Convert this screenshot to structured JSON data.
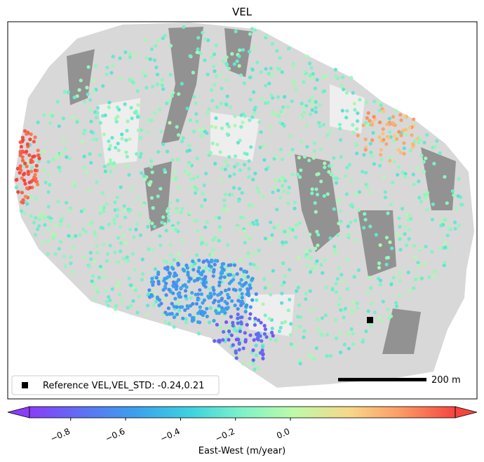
{
  "chart_data": {
    "type": "scatter",
    "title": "VEL",
    "colorbar": {
      "label": "East-West (m/year)",
      "ticks": [
        -0.8,
        -0.6,
        -0.4,
        -0.2,
        0.0
      ],
      "tick_labels": [
        "−0.8",
        "−0.6",
        "−0.4",
        "−0.2",
        "0.0"
      ],
      "range": [
        -0.95,
        0.6
      ],
      "colormap": "rainbow",
      "extend": "both"
    },
    "legend": {
      "placement": "lower-left",
      "marker": "black-square",
      "label": "Reference VEL,VEL_STD: -0.24,0.21"
    },
    "scalebar": {
      "label": "200 m",
      "placement": "lower-right"
    },
    "reference_point": {
      "marker": "black-square"
    },
    "background": "grayscale hillshade",
    "value_clusters": [
      {
        "region": "west edge",
        "value": 0.55
      },
      {
        "region": "center-south",
        "value": -0.6
      },
      {
        "region": "south tip",
        "value": -0.8
      },
      {
        "region": "northeast",
        "value": 0.35
      },
      {
        "region": "general",
        "value": -0.15
      }
    ]
  },
  "colors": {
    "min": "#8b3cf7",
    "max": "#f6443f"
  }
}
